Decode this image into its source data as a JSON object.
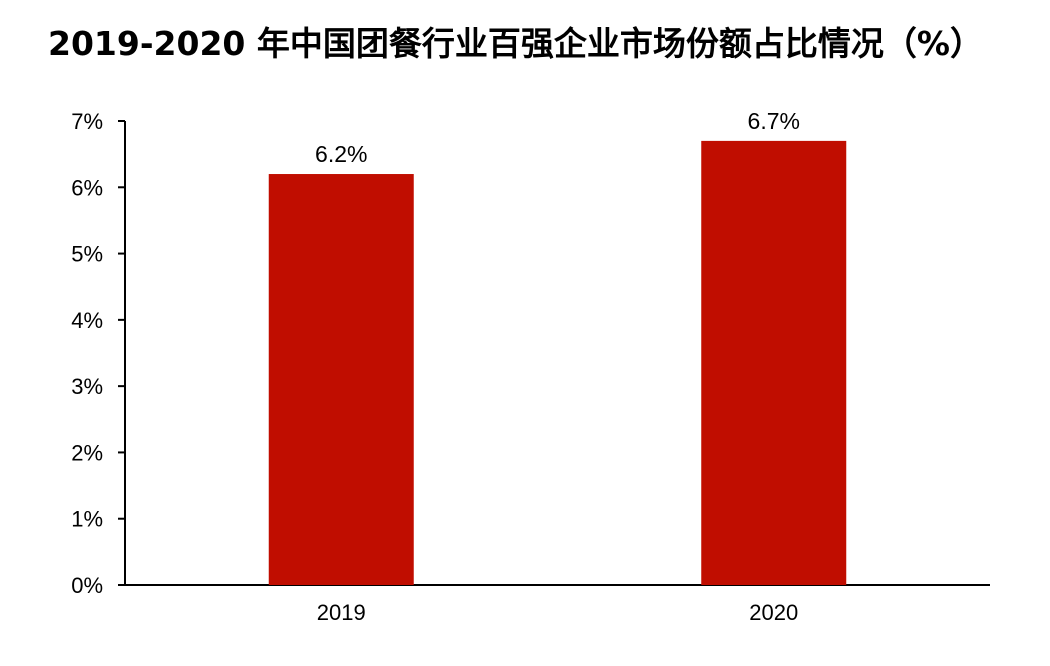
{
  "chart_data": {
    "type": "bar",
    "title": "2019-2020 年中国团餐行业百强企业市场份额占比情况（%）",
    "categories": [
      "2019",
      "2020"
    ],
    "values": [
      6.2,
      6.7
    ],
    "data_labels": [
      "6.2%",
      "6.7%"
    ],
    "xlabel": "",
    "ylabel": "",
    "ylim": [
      0,
      7
    ],
    "y_ticks": [
      0,
      1,
      2,
      3,
      4,
      5,
      6,
      7
    ],
    "y_tick_labels": [
      "0%",
      "1%",
      "2%",
      "3%",
      "4%",
      "5%",
      "6%",
      "7%"
    ],
    "grid": false,
    "legend": "none",
    "bar_color": "#C00D00"
  }
}
